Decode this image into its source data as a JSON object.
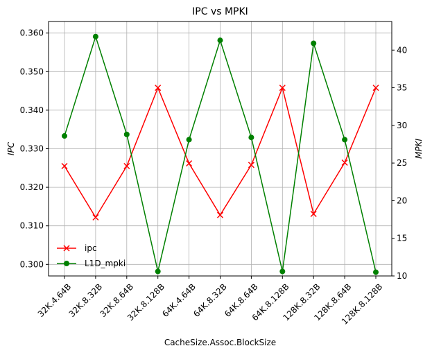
{
  "chart_data": {
    "type": "line",
    "title": "IPC vs MPKI",
    "xlabel": "CacheSize.Assoc.BlockSize",
    "ylabel_left": "IPC",
    "ylabel_right": "MPKI",
    "categories": [
      "32K.4.64B",
      "32K.8.32B",
      "32K.8.64B",
      "32K.8.128B",
      "64K.4.64B",
      "64K.8.32B",
      "64K.8.64B",
      "64K.8.128B",
      "128K.8.32B",
      "128K.8.64B",
      "128K.8.128B"
    ],
    "ylim_left": [
      0.297,
      0.363
    ],
    "ylim_right": [
      10,
      43.8
    ],
    "yticks_left": [
      "0.300",
      "0.310",
      "0.320",
      "0.330",
      "0.340",
      "0.350",
      "0.360"
    ],
    "yticks_right": [
      "10",
      "15",
      "20",
      "25",
      "30",
      "35",
      "40"
    ],
    "grid": true,
    "legend_position": "lower-left",
    "series": [
      {
        "name": "ipc",
        "axis": "left",
        "color": "#ff0000",
        "marker": "x",
        "values": [
          0.3255,
          0.3122,
          0.3255,
          0.3458,
          0.3262,
          0.3128,
          0.3258,
          0.3458,
          0.3131,
          0.3264,
          0.3458
        ]
      },
      {
        "name": "L1D_mpki",
        "axis": "right",
        "color": "#008000",
        "marker": "o",
        "values": [
          28.6,
          41.8,
          28.8,
          10.6,
          28.1,
          41.3,
          28.4,
          10.6,
          40.9,
          28.1,
          10.5
        ]
      }
    ]
  }
}
